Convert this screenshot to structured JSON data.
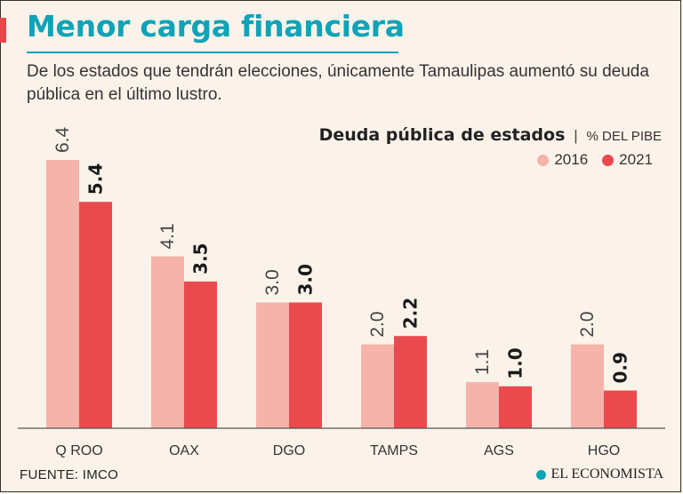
{
  "header": {
    "title": "Menor carga financiera",
    "subtitle": "De los estados que tendrán elecciones, únicamente Tamaulipas aumentó su deuda pública en el último lustro."
  },
  "colors": {
    "accent": "#0fa3b8",
    "series_2016": "#f5b3aa",
    "series_2021": "#ea4a4e",
    "bar_marker": "#e8474b"
  },
  "chart_data": {
    "type": "bar",
    "title": "Deuda pública de estados",
    "unit": "% DEL PIBE",
    "categories": [
      "Q ROO",
      "OAX",
      "DGO",
      "TAMPS",
      "AGS",
      "HGO"
    ],
    "series": [
      {
        "name": "2016",
        "values": [
          6.4,
          4.1,
          3.0,
          2.0,
          1.1,
          2.0
        ],
        "labels": [
          "6.4",
          "4.1",
          "3.0",
          "2.0",
          "1.1",
          "2.0"
        ]
      },
      {
        "name": "2021",
        "values": [
          5.4,
          3.5,
          3.0,
          2.2,
          1.0,
          0.9
        ],
        "labels": [
          "5.4",
          "3.5",
          "3.0",
          "2.2",
          "1.0",
          "0.9"
        ]
      }
    ],
    "legend_position": "top-right",
    "grid": false
  },
  "footer": {
    "source": "FUENTE:  IMCO",
    "brand": "EL ECONOMISTA"
  }
}
